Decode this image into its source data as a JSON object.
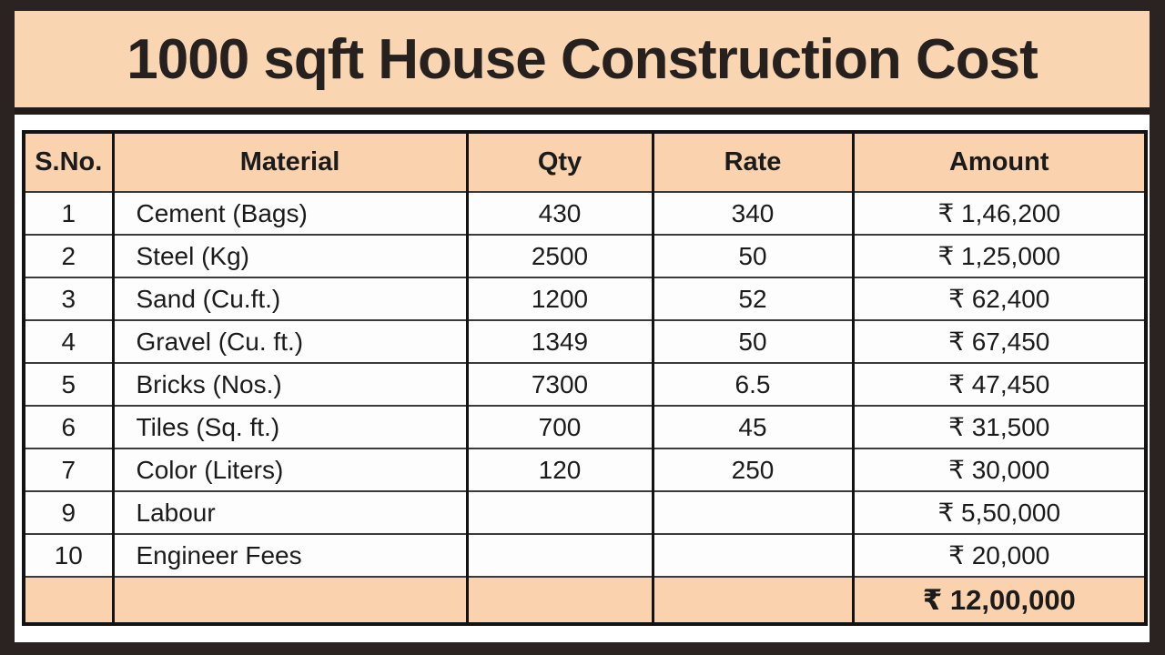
{
  "banner": {
    "title": "1000 sqft House Construction Cost"
  },
  "table": {
    "columns": [
      {
        "key": "sno",
        "label": "S.No."
      },
      {
        "key": "material",
        "label": "Material"
      },
      {
        "key": "qty",
        "label": "Qty"
      },
      {
        "key": "rate",
        "label": "Rate"
      },
      {
        "key": "amount",
        "label": "Amount"
      }
    ],
    "rows": [
      {
        "sno": "1",
        "material": "Cement (Bags)",
        "qty": "430",
        "rate": "340",
        "amount": "₹ 1,46,200"
      },
      {
        "sno": "2",
        "material": "Steel (Kg)",
        "qty": "2500",
        "rate": "50",
        "amount": "₹ 1,25,000"
      },
      {
        "sno": "3",
        "material": "Sand (Cu.ft.)",
        "qty": "1200",
        "rate": "52",
        "amount": "₹ 62,400"
      },
      {
        "sno": "4",
        "material": "Gravel (Cu. ft.)",
        "qty": "1349",
        "rate": "50",
        "amount": "₹ 67,450"
      },
      {
        "sno": "5",
        "material": "Bricks (Nos.)",
        "qty": "7300",
        "rate": "6.5",
        "amount": "₹ 47,450"
      },
      {
        "sno": "6",
        "material": "Tiles (Sq. ft.)",
        "qty": "700",
        "rate": "45",
        "amount": "₹ 31,500"
      },
      {
        "sno": "7",
        "material": "Color (Liters)",
        "qty": "120",
        "rate": "250",
        "amount": "₹ 30,000"
      },
      {
        "sno": "9",
        "material": "Labour",
        "qty": "",
        "rate": "",
        "amount": "₹ 5,50,000"
      },
      {
        "sno": "10",
        "material": "Engineer Fees",
        "qty": "",
        "rate": "",
        "amount": "₹ 20,000"
      }
    ],
    "total": {
      "sno": "",
      "material": "",
      "qty": "",
      "rate": "",
      "amount": "₹ 12,00,000"
    }
  },
  "colors": {
    "banner_peach": "#f9d5b2",
    "header_peach": "#fad2ad",
    "frame_dark": "#2b2321",
    "table_border": "#131313",
    "row_line": "#3b3b3b",
    "text": "#1b1b1b"
  }
}
